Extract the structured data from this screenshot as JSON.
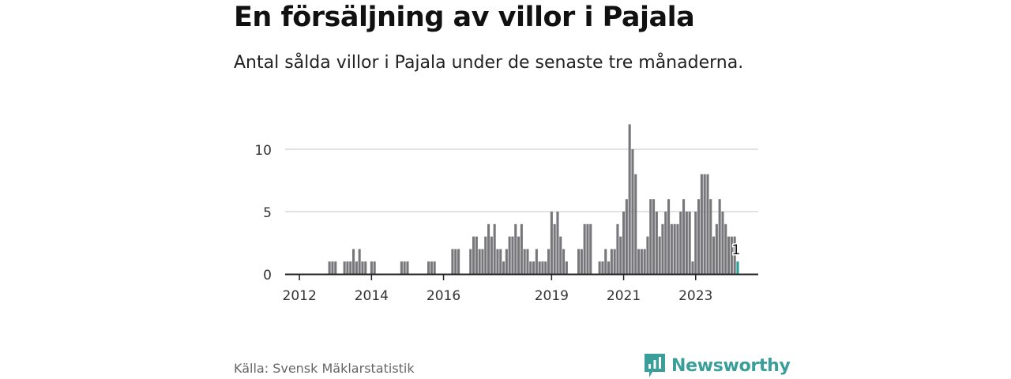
{
  "title": "En försäljning av villor i Pajala",
  "subtitle": "Antal sålda villor i Pajala under de senaste tre månaderna.",
  "source": "Källa: Svensk Mäklarstatistik",
  "brand": {
    "name": "Newsworthy",
    "icon": "bar-chart-logo-icon"
  },
  "colors": {
    "bar": "#77767b",
    "highlight": "#2a9d96",
    "grid": "#d9d9d9",
    "axis": "#222222",
    "brand": "#3a9e9a"
  },
  "chart_data": {
    "type": "bar",
    "title": "En försäljning av villor i Pajala",
    "xlabel": "",
    "ylabel": "",
    "ylim": [
      0,
      12.6
    ],
    "yticks": [
      0,
      5,
      10
    ],
    "x_start_month": "2011-11",
    "xticks": [
      {
        "label": "2012",
        "index": 2
      },
      {
        "label": "2014",
        "index": 26
      },
      {
        "label": "2016",
        "index": 50
      },
      {
        "label": "2019",
        "index": 86
      },
      {
        "label": "2021",
        "index": 110
      },
      {
        "label": "2023",
        "index": 134
      }
    ],
    "values": [
      0,
      0,
      0,
      0,
      0,
      0,
      0,
      0,
      0,
      0,
      0,
      0,
      1,
      1,
      1,
      0,
      0,
      1,
      1,
      1,
      2,
      1,
      2,
      1,
      1,
      0,
      1,
      1,
      0,
      0,
      0,
      0,
      0,
      0,
      0,
      0,
      1,
      1,
      1,
      0,
      0,
      0,
      0,
      0,
      0,
      1,
      1,
      1,
      0,
      0,
      0,
      0,
      0,
      2,
      2,
      2,
      0,
      0,
      0,
      2,
      3,
      3,
      2,
      2,
      3,
      4,
      3,
      4,
      2,
      2,
      1,
      2,
      3,
      3,
      4,
      3,
      4,
      2,
      2,
      1,
      1,
      2,
      1,
      1,
      1,
      2,
      5,
      4,
      5,
      3,
      2,
      1,
      0,
      0,
      0,
      2,
      2,
      4,
      4,
      4,
      0,
      0,
      1,
      1,
      2,
      1,
      2,
      2,
      4,
      3,
      5,
      6,
      12,
      10,
      8,
      2,
      2,
      2,
      3,
      6,
      6,
      5,
      3,
      4,
      5,
      6,
      4,
      4,
      4,
      5,
      6,
      5,
      5,
      1,
      5,
      6,
      8,
      8,
      8,
      6,
      3,
      4,
      6,
      5,
      4,
      3,
      3,
      3,
      1
    ],
    "highlight_index": 148,
    "annotation": {
      "index": 148,
      "text": "1"
    }
  }
}
